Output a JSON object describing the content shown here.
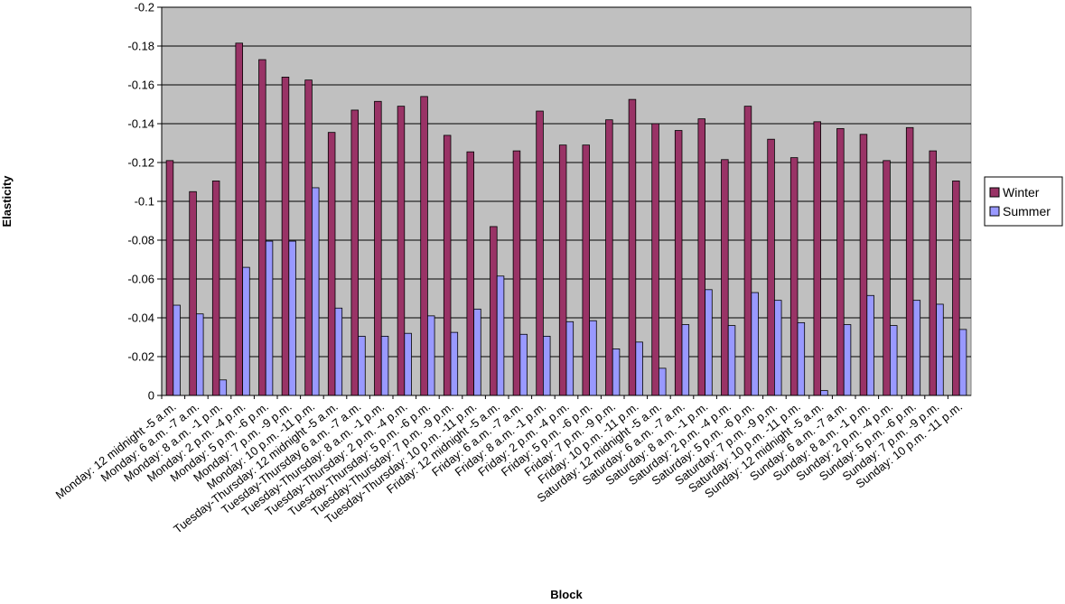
{
  "chart_data": {
    "type": "bar",
    "title": "",
    "xlabel": "Block",
    "ylabel": "Elasticity",
    "ylim": [
      0,
      -0.2
    ],
    "y_axis_reversed": true,
    "yticks": [
      "-0.2",
      "-0.18",
      "-0.16",
      "-0.14",
      "-0.12",
      "-0.1",
      "-0.08",
      "-0.06",
      "-0.04",
      "-0.02",
      "0"
    ],
    "grid": true,
    "legend_position": "right",
    "plot_background": "#c0c0c0",
    "categories": [
      "Monday: 12 midnight -5 a.m.",
      "Monday: 6 a.m. -7 a.m.",
      "Monday: 8 a.m. -1 p.m.",
      "Monday: 2 p.m. -4 p.m.",
      "Monday: 5 p.m. -6 p.m.",
      "Monday: 7 p.m. -9 p.m.",
      "Monday: 10 p.m. -11 p.m.",
      "Tuesday-Thursday: 12 midnight -5 a.m.",
      "Tuesday-Thursday 6 a.m. -7 a.m.",
      "Tuesday-Thursday: 8 a.m. -1 p.m.",
      "Tuesday-Thursday: 2 p.m. -4 p.m.",
      "Tuesday-Thursday: 5 p.m. -6 p.m.",
      "Tuesday-Thursday: 7 p.m. -9 p.m.",
      "Tuesday-Thursday: 10 p.m. -11 p.m.",
      "Friday: 12 midnight -5 a.m.",
      "Friday: 6 a.m. -7 a.m.",
      "Friday: 8 a.m. -1 p.m.",
      "Friday: 2 p.m. -4 p.m.",
      "Friday: 5 p.m. -6 p.m.",
      "Friday: 7 p.m. -9 p.m.",
      "Friday: 10 p.m. -11 p.m.",
      "Saturday: 12 midnight -5 a.m.",
      "Saturday: 6 a.m. -7 a.m.",
      "Saturday: 8 a.m. -1 p.m.",
      "Saturday: 2 p.m. -4 p.m.",
      "Saturday: 5 p.m. -6 p.m.",
      "Saturday: 7 p.m. -9 p.m.",
      "Saturday: 10 p.m. -11 p.m.",
      "Sunday: 12 midnight -5 a.m.",
      "Sunday: 6 a.m. -7 a.m.",
      "Sunday: 8 a.m. -1 p.m.",
      "Sunday: 2 p.m. -4 p.m.",
      "Sunday: 5 p.m. -6 p.m.",
      "Sunday: 7 p.m. -9 p.m.",
      "Sunday: 10 p.m. -11 p.m."
    ],
    "series": [
      {
        "name": "Winter",
        "color": "#993366",
        "values": [
          -0.121,
          -0.105,
          -0.1105,
          -0.1815,
          -0.173,
          -0.164,
          -0.1625,
          -0.1355,
          -0.147,
          -0.1515,
          -0.149,
          -0.154,
          -0.134,
          -0.1255,
          -0.087,
          -0.126,
          -0.1465,
          -0.129,
          -0.129,
          -0.142,
          -0.1525,
          -0.14,
          -0.1365,
          -0.1425,
          -0.1215,
          -0.149,
          -0.132,
          -0.1225,
          -0.141,
          -0.1375,
          -0.1345,
          -0.121,
          -0.138,
          -0.126,
          -0.1105
        ]
      },
      {
        "name": "Summer",
        "color": "#9999ff",
        "values": [
          -0.0465,
          -0.042,
          -0.008,
          -0.066,
          -0.0795,
          -0.0795,
          -0.107,
          -0.045,
          -0.0305,
          -0.0305,
          -0.032,
          -0.041,
          -0.0325,
          -0.0445,
          -0.0615,
          -0.0315,
          -0.0305,
          -0.038,
          -0.0385,
          -0.024,
          -0.0275,
          -0.014,
          -0.0365,
          -0.0545,
          -0.036,
          -0.053,
          -0.049,
          -0.0375,
          -0.0025,
          -0.0365,
          -0.0515,
          -0.036,
          -0.049,
          -0.047,
          -0.034
        ]
      }
    ]
  }
}
